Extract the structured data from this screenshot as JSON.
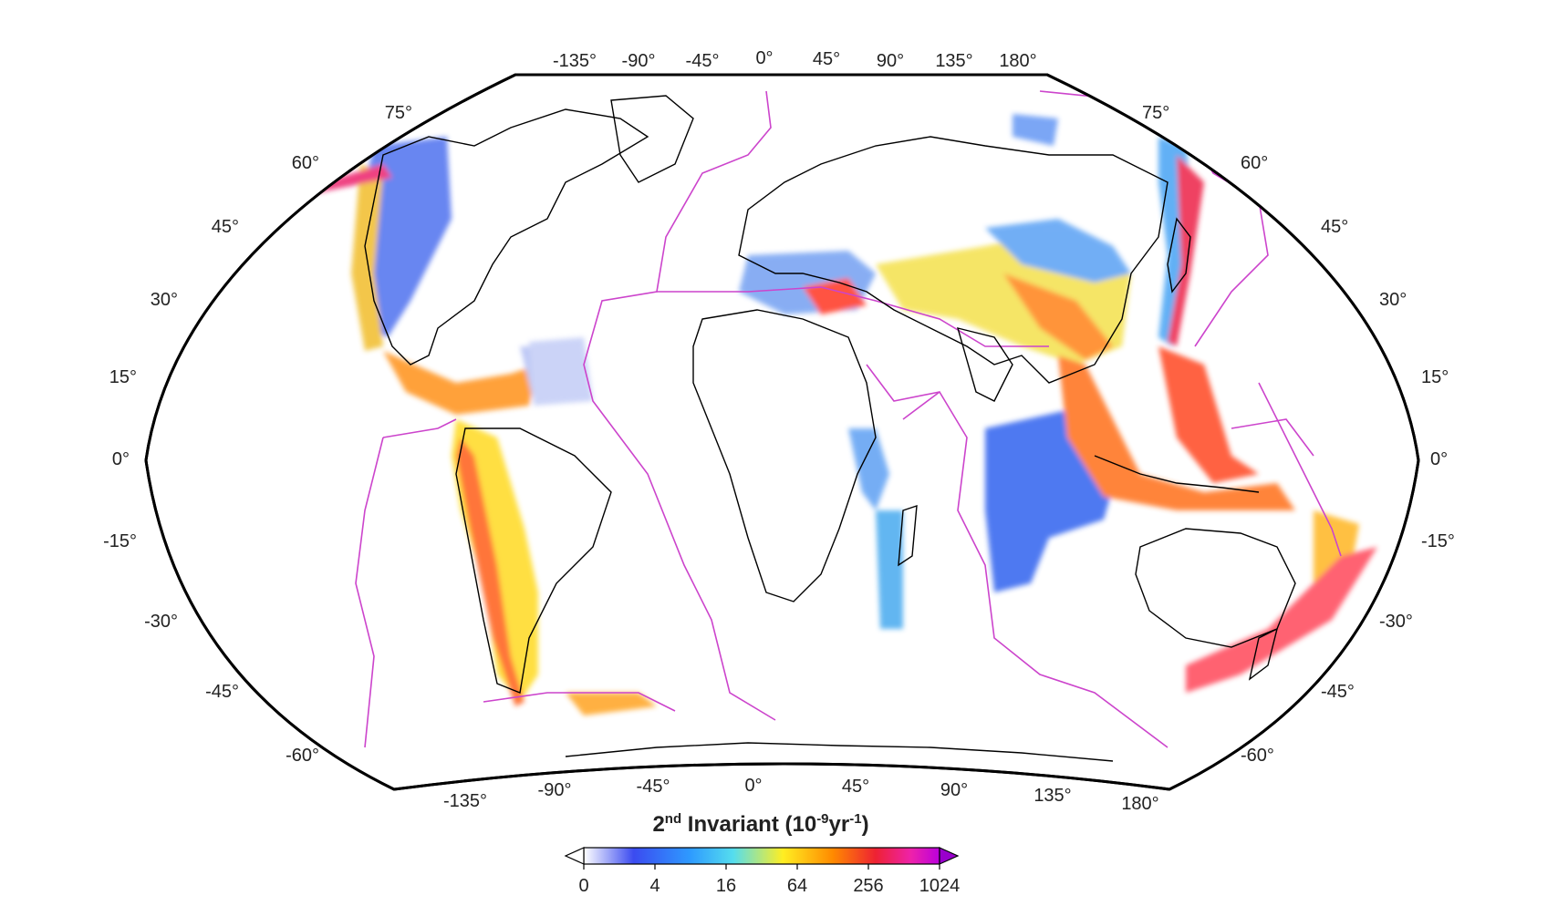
{
  "map": {
    "projection": "Winkel-like pseudo-cylindrical world map (Pacific-centred shift)",
    "top_longitude_labels": [
      "-135°",
      "-90°",
      "-45°",
      "0°",
      "45°",
      "90°",
      "135°",
      "180°"
    ],
    "bottom_longitude_labels": [
      "-135°",
      "-90°",
      "-45°",
      "0°",
      "45°",
      "90°",
      "135°",
      "180°"
    ],
    "left_latitude_labels": [
      "75°",
      "60°",
      "45°",
      "30°",
      "15°",
      "0°",
      "-15°",
      "-30°",
      "-45°",
      "-60°"
    ],
    "right_latitude_labels": [
      "75°",
      "60°",
      "45°",
      "30°",
      "15°",
      "0°",
      "-15°",
      "-30°",
      "-45°",
      "-60°"
    ],
    "plate_boundary_color": "#cc44cc",
    "coastline_color": "#000000"
  },
  "colorbar": {
    "title_main": "2",
    "title_sup": "nd",
    "title_rest": " Invariant (10",
    "title_exp": "-9",
    "title_unit": "yr",
    "title_unit_exp": "-1",
    "title_close": ")",
    "tick_labels": [
      "0",
      "4",
      "16",
      "64",
      "256",
      "1024"
    ],
    "colors": [
      "#ffffff",
      "#3355ee",
      "#55ddee",
      "#ffee22",
      "#ff7700",
      "#ee2233",
      "#dd22cc",
      "#aa00dd"
    ]
  }
}
